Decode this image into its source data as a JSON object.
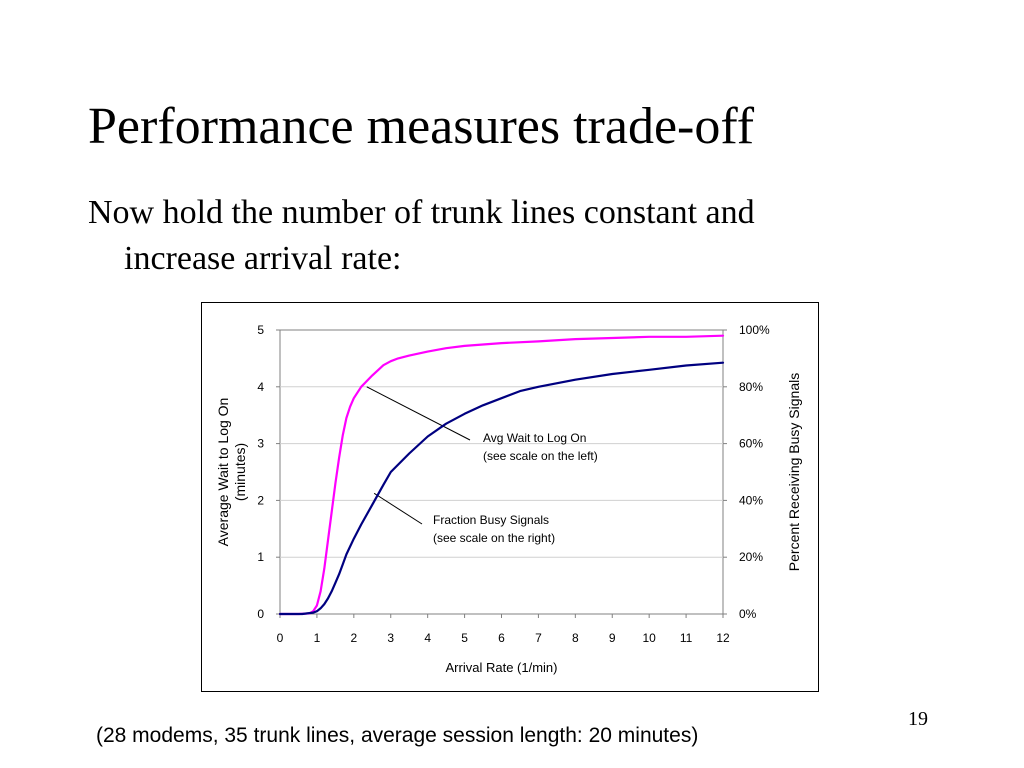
{
  "slide": {
    "title": "Performance measures trade-off",
    "bullet_line1": "Now hold the number of trunk lines constant and",
    "bullet_line2": "increase arrival rate:",
    "page_number": "19",
    "footnote": "(28 modems, 35 trunk lines, average session length: 20 minutes)"
  },
  "chart_data": {
    "type": "line",
    "xlabel": "Arrival Rate (1/min)",
    "ylabel_line1": "Average Wait to Log On",
    "ylabel_line2": "(minutes)",
    "y2label": "Percent Receiving Busy Signals",
    "xlim": [
      0,
      12
    ],
    "ylim": [
      0,
      5
    ],
    "y2lim": [
      0,
      100
    ],
    "x_ticks": [
      "0",
      "1",
      "2",
      "3",
      "4",
      "5",
      "6",
      "7",
      "8",
      "9",
      "10",
      "11",
      "12"
    ],
    "y_ticks": [
      "0",
      "1",
      "2",
      "3",
      "4",
      "5"
    ],
    "y2_ticks": [
      "0%",
      "20%",
      "40%",
      "60%",
      "80%",
      "100%"
    ],
    "grid": "horizontal",
    "series": [
      {
        "axis": "left",
        "color": "#ff00ff",
        "x": [
          0,
          0.5,
          0.8,
          0.9,
          1.0,
          1.1,
          1.2,
          1.3,
          1.4,
          1.5,
          1.6,
          1.7,
          1.8,
          1.9,
          2.0,
          2.2,
          2.5,
          2.8,
          3.0,
          3.2,
          3.5,
          4.0,
          4.5,
          5.0,
          6.0,
          7.0,
          8.0,
          9.0,
          10.0,
          11.0,
          12.0
        ],
        "y": [
          0,
          0,
          0.01,
          0.05,
          0.15,
          0.4,
          0.8,
          1.3,
          1.8,
          2.3,
          2.75,
          3.15,
          3.45,
          3.65,
          3.8,
          4.0,
          4.2,
          4.38,
          4.45,
          4.5,
          4.55,
          4.62,
          4.68,
          4.72,
          4.77,
          4.8,
          4.84,
          4.86,
          4.88,
          4.88,
          4.9
        ]
      },
      {
        "axis": "right",
        "color": "#000080",
        "x": [
          0,
          0.6,
          0.9,
          1.0,
          1.1,
          1.2,
          1.3,
          1.4,
          1.5,
          1.6,
          1.7,
          1.8,
          2.0,
          2.2,
          2.5,
          2.8,
          3.0,
          3.5,
          4.0,
          4.5,
          5.0,
          5.5,
          6.0,
          6.5,
          7.0,
          8.0,
          9.0,
          10.0,
          11.0,
          12.0
        ],
        "y": [
          0,
          0,
          0.5,
          1.0,
          2.0,
          3.5,
          5.5,
          8.0,
          11.0,
          14.0,
          17.5,
          21.0,
          26.5,
          31.5,
          38.5,
          45.5,
          50.0,
          56.5,
          62.5,
          67.0,
          70.5,
          73.5,
          76.0,
          78.5,
          80.0,
          82.5,
          84.5,
          86.0,
          87.5,
          88.5
        ]
      }
    ],
    "annotations": [
      {
        "line1": "Avg Wait to Log On",
        "line2": "(see scale on the left)",
        "x": 2.35,
        "y": 4.0,
        "axis": "left"
      },
      {
        "line1": "Fraction Busy Signals",
        "line2": "(see scale on the right)",
        "x": 2.55,
        "y": 42.5,
        "axis": "right"
      }
    ]
  }
}
